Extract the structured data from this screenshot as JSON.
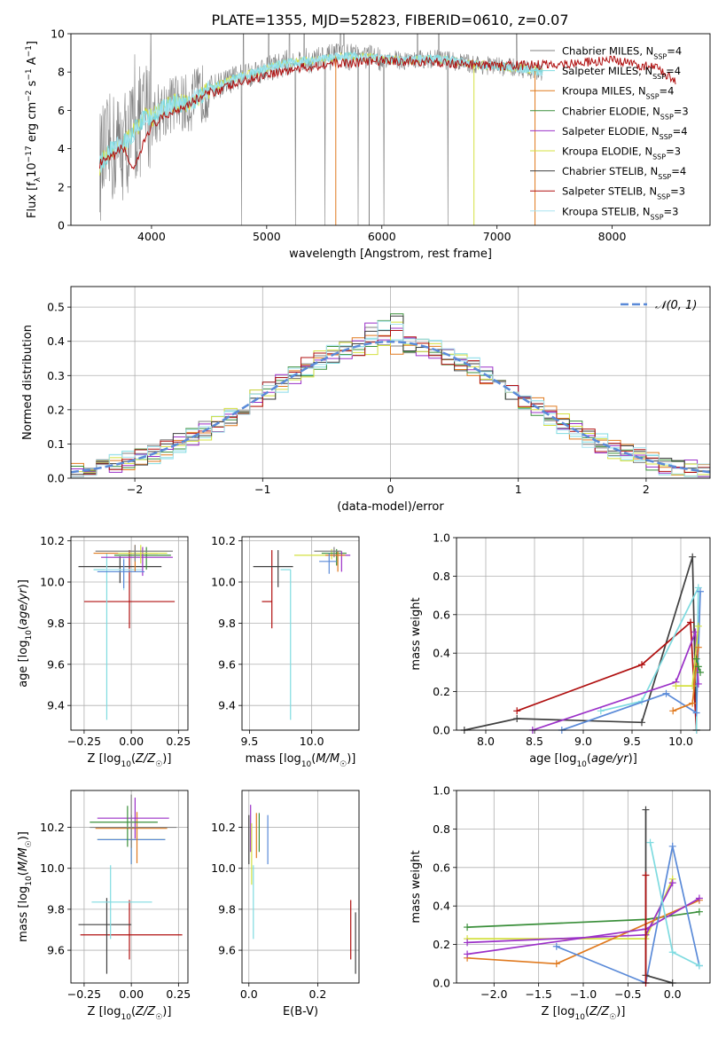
{
  "title": "PLATE=1355, MJD=52823, FIBERID=0610, z=0.07",
  "colors": {
    "grid": "#b0b0b0",
    "series": [
      "#808080",
      "#7fdbe0",
      "#e07a1f",
      "#3a8f3a",
      "#9b30c8",
      "#d4e040",
      "#404040",
      "#b01010",
      "#a8e4f0"
    ],
    "Chabrier MILES": "#808080",
    "Salpeter MILES": "#7fdbe0",
    "Kroupa MILES": "#e07a1f",
    "Chabrier ELODIE": "#3a8f3a",
    "Salpeter ELODIE": "#9b30c8",
    "Kroupa ELODIE": "#d4e040",
    "Chabrier STELIB": "#404040",
    "Salpeter STELIB": "#b01010",
    "Kroupa STELIB": "#a8e4f0",
    "normal": "#5a8ad8"
  },
  "chart_data": [
    {
      "id": "spectrum",
      "type": "line",
      "xlabel": "wavelength [Angstrom, rest frame]",
      "ylabel": "Flux [f_λ10^-17 erg cm^-2 s^-1 A^-1]",
      "xlim": [
        3300,
        8850
      ],
      "ylim": [
        0,
        10
      ],
      "xticks": [
        4000,
        5000,
        6000,
        7000,
        8000
      ],
      "yticks": [
        0,
        2,
        4,
        6,
        8,
        10
      ],
      "grid": false,
      "legend_position": "top-right",
      "legend": [
        "Chabrier MILES, N_SSP=4",
        "Salpeter MILES, N_SSP=4",
        "Kroupa MILES, N_SSP=4",
        "Chabrier ELODIE, N_SSP=3",
        "Salpeter ELODIE, N_SSP=4",
        "Kroupa ELODIE, N_SSP=3",
        "Chabrier STELIB, N_SSP=4",
        "Salpeter STELIB, N_SSP=3",
        "Kroupa STELIB, N_SSP=3"
      ],
      "continuum": {
        "x": [
          3550,
          3650,
          3750,
          3850,
          3950,
          4000,
          4100,
          4200,
          4300,
          4500,
          4700,
          4900,
          5000,
          5200,
          5400,
          5600,
          5800,
          6000,
          6200,
          6400,
          6600,
          6800,
          7000,
          7200,
          7400
        ],
        "y": [
          3.1,
          4.0,
          4.2,
          4.9,
          5.8,
          5.6,
          6.1,
          6.4,
          6.3,
          7.1,
          7.6,
          8.0,
          8.2,
          8.5,
          8.6,
          8.8,
          8.8,
          8.7,
          8.6,
          8.7,
          8.6,
          8.4,
          8.3,
          8.2,
          8.0
        ]
      },
      "red_model": {
        "x": [
          3550,
          3650,
          3750,
          3850,
          3950,
          4000,
          4200,
          4500,
          5000,
          5500,
          6000,
          6500,
          7000,
          7500,
          8000,
          8400,
          8550
        ],
        "y": [
          3.2,
          3.5,
          4.1,
          2.8,
          4.6,
          5.2,
          6.0,
          6.9,
          7.9,
          8.4,
          8.6,
          8.5,
          8.3,
          8.4,
          8.6,
          8.2,
          7.5
        ]
      }
    },
    {
      "id": "residual-histogram",
      "type": "histogram",
      "xlabel": "(data-model)/error",
      "ylabel": "Normed distribution",
      "xlim": [
        -2.5,
        2.5
      ],
      "ylim": [
        0,
        0.56
      ],
      "xticks": [
        -2,
        -1,
        0,
        1,
        2
      ],
      "yticks": [
        0.0,
        0.1,
        0.2,
        0.3,
        0.4,
        0.5
      ],
      "grid": true,
      "bin_width": 0.1,
      "legend": "𝒩(0, 1)",
      "legend_position": "top-right"
    },
    {
      "id": "age-vs-Z",
      "type": "errorbar",
      "xlabel": "Z [log10(Z/Z☉)]",
      "ylabel": "age  [log10(age/yr)]",
      "xlim": [
        -0.32,
        0.3
      ],
      "ylim": [
        9.28,
        10.22
      ],
      "xticks": [
        -0.25,
        0.0,
        0.25
      ],
      "yticks": [
        9.4,
        9.6,
        9.8,
        10.0,
        10.2
      ],
      "grid": true,
      "points": [
        {
          "x": -0.01,
          "xerr": [
            0.24,
            0.24
          ],
          "y": 9.905,
          "yerr": [
            0.13,
            0.25
          ],
          "series": "Salpeter STELIB"
        },
        {
          "x": -0.06,
          "xerr": [
            0.22,
            0.22
          ],
          "y": 10.075,
          "yerr": [
            0.08,
            0.05
          ],
          "series": "Chabrier STELIB"
        },
        {
          "x": -0.13,
          "xerr": [
            0.07,
            0.14
          ],
          "y": 10.06,
          "yerr": [
            0.73,
            0.08
          ],
          "series": "Salpeter MILES"
        },
        {
          "x": -0.04,
          "xerr": [
            0.1,
            0.1
          ],
          "y": 10.06,
          "yerr": [
            0.1,
            0.06
          ],
          "series": "Kroupa STELIB"
        },
        {
          "x": 0.08,
          "xerr": [
            0.17,
            0.13
          ],
          "y": 10.13,
          "yerr": [
            0.07,
            0.04
          ],
          "series": "Chabrier ELODIE"
        },
        {
          "x": 0.02,
          "xerr": [
            0.22,
            0.12
          ],
          "y": 10.14,
          "yerr": [
            0.09,
            0.04
          ],
          "series": "Kroupa MILES"
        },
        {
          "x": 0.06,
          "xerr": [
            0.22,
            0.16
          ],
          "y": 10.12,
          "yerr": [
            0.09,
            0.05
          ],
          "series": "Salpeter ELODIE"
        },
        {
          "x": -0.04,
          "xerr": [
            0.14,
            0.11
          ],
          "y": 10.05,
          "yerr": [
            0.08,
            0.06
          ],
          "series": "normal"
        },
        {
          "x": 0.05,
          "xerr": [
            0.12,
            0.14
          ],
          "y": 10.14,
          "yerr": [
            0.05,
            0.04
          ],
          "series": "Kroupa ELODIE"
        },
        {
          "x": 0.02,
          "xerr": [
            0.21,
            0.2
          ],
          "y": 10.15,
          "yerr": [
            0.05,
            0.03
          ],
          "series": "Chabrier MILES"
        }
      ]
    },
    {
      "id": "age-vs-mass",
      "type": "errorbar",
      "xlabel": "mass [log10(M/M☉)]",
      "ylabel": "",
      "xlim": [
        9.44,
        10.38
      ],
      "ylim": [
        9.28,
        10.22
      ],
      "xticks": [
        9.5,
        10.0
      ],
      "yticks": [
        9.4,
        9.6,
        9.8,
        10.0,
        10.2
      ],
      "grid": true,
      "points": [
        {
          "x": 9.68,
          "xerr": [
            0.08,
            0.0
          ],
          "y": 9.905,
          "yerr": [
            0.13,
            0.25
          ],
          "series": "Salpeter STELIB"
        },
        {
          "x": 9.73,
          "xerr": [
            0.2,
            0.12
          ],
          "y": 10.075,
          "yerr": [
            0.1,
            0.08
          ],
          "series": "Chabrier STELIB"
        },
        {
          "x": 9.83,
          "xerr": [
            0.08,
            0.0
          ],
          "y": 10.06,
          "yerr": [
            0.73,
            0.0
          ],
          "series": "Salpeter MILES"
        },
        {
          "x": 10.16,
          "xerr": [
            0.3,
            0.1
          ],
          "y": 10.13,
          "yerr": [
            0.02,
            0.03
          ],
          "series": "Kroupa ELODIE"
        },
        {
          "x": 10.2,
          "xerr": [
            0.12,
            0.08
          ],
          "y": 10.14,
          "yerr": [
            0.06,
            0.02
          ],
          "series": "Chabrier ELODIE"
        },
        {
          "x": 10.24,
          "xerr": [
            0.1,
            0.07
          ],
          "y": 10.13,
          "yerr": [
            0.08,
            0.02
          ],
          "series": "Salpeter ELODIE"
        },
        {
          "x": 10.21,
          "xerr": [
            0.1,
            0.06
          ],
          "y": 10.13,
          "yerr": [
            0.08,
            0.02
          ],
          "series": "Kroupa MILES"
        },
        {
          "x": 10.14,
          "xerr": [
            0.08,
            0.06
          ],
          "y": 10.1,
          "yerr": [
            0.06,
            0.04
          ],
          "series": "normal"
        },
        {
          "x": 10.18,
          "xerr": [
            0.16,
            0.06
          ],
          "y": 10.15,
          "yerr": [
            0.03,
            0.02
          ],
          "series": "Chabrier MILES"
        }
      ]
    },
    {
      "id": "mass-weight-vs-age",
      "type": "line",
      "xlabel": "age  [log10(age/yr)]",
      "ylabel": "mass weight",
      "xlim": [
        7.7,
        10.3
      ],
      "ylim": [
        0,
        1
      ],
      "xticks": [
        8.0,
        8.5,
        9.0,
        9.5,
        10.0
      ],
      "yticks": [
        0.0,
        0.2,
        0.4,
        0.6,
        0.8,
        1.0
      ],
      "grid": true,
      "series": [
        {
          "series": "Chabrier STELIB",
          "x": [
            7.78,
            8.32,
            9.6,
            10.12,
            10.16
          ],
          "y": [
            0.0,
            0.06,
            0.04,
            0.9,
            0.0
          ]
        },
        {
          "series": "Salpeter STELIB",
          "x": [
            8.32,
            9.6,
            10.1,
            10.16
          ],
          "y": [
            0.1,
            0.34,
            0.56,
            0.0
          ]
        },
        {
          "series": "Salpeter MILES",
          "x": [
            9.18,
            9.6,
            10.18,
            10.16
          ],
          "y": [
            0.1,
            0.15,
            0.74,
            0.0
          ]
        },
        {
          "series": "normal",
          "x": [
            8.78,
            9.85,
            10.16,
            10.2
          ],
          "y": [
            0.0,
            0.19,
            0.09,
            0.72
          ]
        },
        {
          "series": "Salpeter ELODIE",
          "x": [
            8.48,
            9.95,
            10.15,
            10.18
          ],
          "y": [
            0.0,
            0.25,
            0.51,
            0.24
          ]
        },
        {
          "series": "Kroupa ELODIE",
          "x": [
            9.95,
            10.12,
            10.18
          ],
          "y": [
            0.23,
            0.23,
            0.54
          ]
        },
        {
          "series": "Kroupa MILES",
          "x": [
            9.92,
            10.12,
            10.18
          ],
          "y": [
            0.1,
            0.14,
            0.43
          ]
        },
        {
          "series": "Chabrier ELODIE",
          "x": [
            10.16,
            10.18,
            10.2
          ],
          "y": [
            0.37,
            0.33,
            0.3
          ]
        }
      ]
    },
    {
      "id": "mass-vs-Z",
      "type": "errorbar",
      "xlabel": "Z [log10(Z/Z☉)]",
      "ylabel": "mass [log10(M/M☉)]",
      "xlim": [
        -0.32,
        0.3
      ],
      "ylim": [
        9.44,
        10.38
      ],
      "xticks": [
        -0.25,
        0.0,
        0.25
      ],
      "yticks": [
        9.6,
        9.8,
        10.0,
        10.2
      ],
      "grid": true,
      "points": [
        {
          "x": -0.01,
          "xerr": [
            0.26,
            0.28
          ],
          "y": 9.675,
          "yerr": [
            0.12,
            0.17
          ],
          "series": "Salpeter STELIB"
        },
        {
          "x": -0.13,
          "xerr": [
            0.15,
            0.13
          ],
          "y": 9.725,
          "yerr": [
            0.24,
            0.13
          ],
          "series": "Chabrier STELIB"
        },
        {
          "x": -0.11,
          "xerr": [
            0.1,
            0.22
          ],
          "y": 9.835,
          "yerr": [
            0.18,
            0.18
          ],
          "series": "Salpeter MILES"
        },
        {
          "x": 0.0,
          "xerr": [
            0.18,
            0.18
          ],
          "y": 10.14,
          "yerr": [
            0.12,
            0.12
          ],
          "series": "Kroupa ELODIE"
        },
        {
          "x": 0.0,
          "xerr": [
            0.18,
            0.18
          ],
          "y": 10.14,
          "yerr": [
            0.12,
            0.12
          ],
          "series": "normal"
        },
        {
          "x": 0.03,
          "xerr": [
            0.22,
            0.16
          ],
          "y": 10.195,
          "yerr": [
            0.17,
            0.08
          ],
          "series": "Kroupa MILES"
        },
        {
          "x": 0.02,
          "xerr": [
            0.2,
            0.18
          ],
          "y": 10.245,
          "yerr": [
            0.1,
            0.1
          ],
          "series": "Salpeter ELODIE"
        },
        {
          "x": -0.02,
          "xerr": [
            0.2,
            0.16
          ],
          "y": 10.225,
          "yerr": [
            0.12,
            0.08
          ],
          "series": "Chabrier ELODIE"
        },
        {
          "x": 0.0,
          "xerr": [
            0.22,
            0.24
          ],
          "y": 10.2,
          "yerr": [
            0.1,
            0.16
          ],
          "series": "Chabrier MILES"
        }
      ]
    },
    {
      "id": "mass-vs-EBV",
      "type": "errorbar",
      "xlabel": "E(B-V)",
      "ylabel": "",
      "xlim": [
        -0.02,
        0.32
      ],
      "ylim": [
        9.44,
        10.38
      ],
      "xticks": [
        0.0,
        0.2
      ],
      "yticks": [
        9.6,
        9.8,
        10.0,
        10.2
      ],
      "grid": true,
      "points": [
        {
          "x": 0.296,
          "xerr": [
            0,
            0
          ],
          "y": 9.675,
          "yerr": [
            0.12,
            0.17
          ],
          "series": "Salpeter STELIB"
        },
        {
          "x": 0.31,
          "xerr": [
            0,
            0
          ],
          "y": 9.725,
          "yerr": [
            0.24,
            0.06
          ],
          "series": "Chabrier STELIB"
        },
        {
          "x": 0.013,
          "xerr": [
            0,
            0
          ],
          "y": 9.835,
          "yerr": [
            0.18,
            0.18
          ],
          "series": "Salpeter MILES"
        },
        {
          "x": 0.0,
          "xerr": [
            0,
            0
          ],
          "y": 10.14,
          "yerr": [
            0.12,
            0.12
          ],
          "series": "Chabrier STELIB"
        },
        {
          "x": 0.005,
          "xerr": [
            0,
            0
          ],
          "y": 10.2,
          "yerr": [
            0.12,
            0.11
          ],
          "series": "Salpeter ELODIE"
        },
        {
          "x": 0.008,
          "xerr": [
            0,
            0
          ],
          "y": 10.08,
          "yerr": [
            0.16,
            0.14
          ],
          "series": "Kroupa ELODIE"
        },
        {
          "x": 0.022,
          "xerr": [
            0,
            0
          ],
          "y": 10.17,
          "yerr": [
            0.12,
            0.1
          ],
          "series": "Kroupa MILES"
        },
        {
          "x": 0.03,
          "xerr": [
            0,
            0
          ],
          "y": 10.18,
          "yerr": [
            0.1,
            0.09
          ],
          "series": "Chabrier ELODIE"
        },
        {
          "x": 0.055,
          "xerr": [
            0,
            0
          ],
          "y": 10.14,
          "yerr": [
            0.12,
            0.12
          ],
          "series": "normal"
        }
      ]
    },
    {
      "id": "mass-weight-vs-Z",
      "type": "line",
      "xlabel": "Z [log10(Z/Z☉)]",
      "ylabel": "mass weight",
      "xlim": [
        -2.42,
        0.42
      ],
      "ylim": [
        0,
        1
      ],
      "xticks": [
        -2.0,
        -1.5,
        -1.0,
        -0.5,
        0.0
      ],
      "yticks": [
        0.0,
        0.2,
        0.4,
        0.6,
        0.8,
        1.0
      ],
      "grid": true,
      "series": [
        {
          "series": "Chabrier ELODIE",
          "x": [
            -2.3,
            -0.3,
            0.3
          ],
          "y": [
            0.29,
            0.33,
            0.37
          ]
        },
        {
          "series": "Kroupa ELODIE",
          "x": [
            -2.3,
            -0.3,
            0.0
          ],
          "y": [
            0.23,
            0.23,
            0.54
          ]
        },
        {
          "series": "Salpeter ELODIE",
          "x": [
            -2.3,
            -0.3,
            0.0
          ],
          "y": [
            0.21,
            0.25,
            0.52
          ]
        },
        {
          "series": "Kroupa MILES",
          "x": [
            -2.3,
            -1.3,
            0.3
          ],
          "y": [
            0.13,
            0.1,
            0.43
          ]
        },
        {
          "series": "Salpeter ELODIE",
          "x": [
            -2.3,
            -0.3,
            0.3
          ],
          "y": [
            0.15,
            0.28,
            0.44
          ]
        },
        {
          "series": "normal",
          "x": [
            -1.3,
            -0.3,
            0.0,
            0.3
          ],
          "y": [
            0.19,
            0.0,
            0.71,
            0.09
          ]
        },
        {
          "series": "Salpeter MILES",
          "x": [
            -0.25,
            0.0,
            0.3
          ],
          "y": [
            0.73,
            0.16,
            0.09
          ]
        },
        {
          "series": "Chabrier STELIB",
          "x": [
            -0.3,
            -0.3,
            0.0
          ],
          "y": [
            0.9,
            0.04,
            0.0
          ]
        },
        {
          "series": "Salpeter STELIB",
          "x": [
            -0.3,
            -0.3
          ],
          "y": [
            0.56,
            0.0
          ]
        }
      ]
    }
  ]
}
